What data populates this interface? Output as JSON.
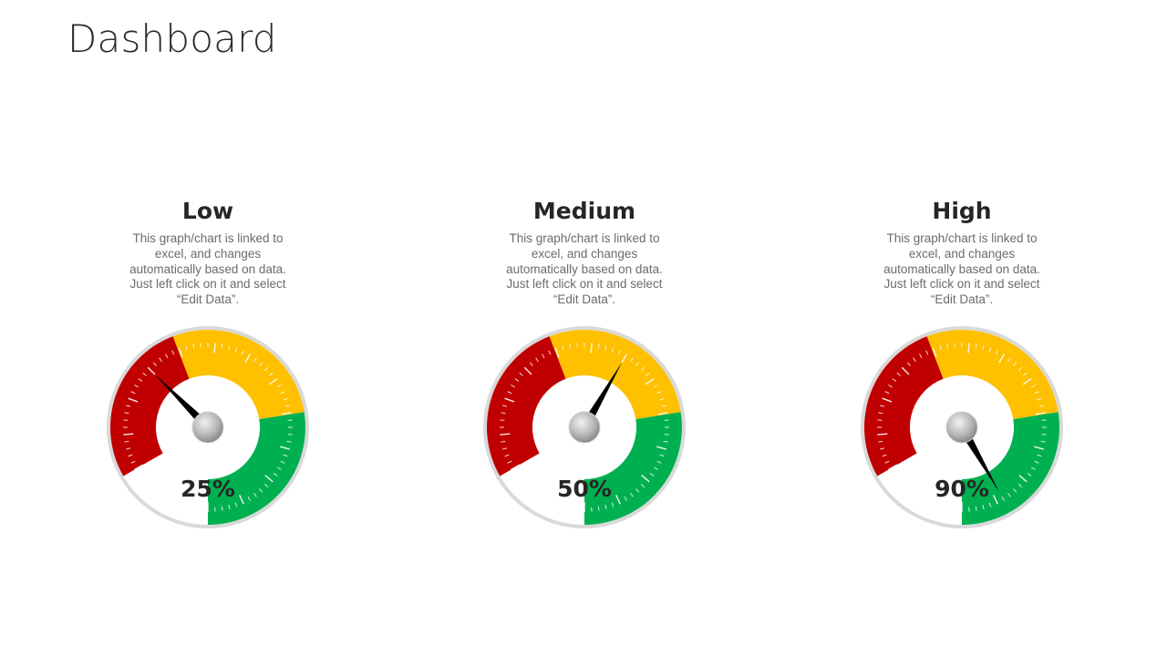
{
  "title": "Dashboard",
  "colors": {
    "low": "#c00000",
    "medium": "#ffc000",
    "high": "#00b050",
    "needle": "#000000",
    "rim": "#d9d9d9"
  },
  "chart_data": [
    {
      "type": "gauge",
      "title": "Low",
      "description": "This graph/chart is linked to excel, and changes automatically based on data. Just left click on it and select “Edit Data”.",
      "value": 25,
      "value_label": "25%",
      "range": [
        0,
        100
      ],
      "bands": [
        {
          "color": "#c00000",
          "from": 0,
          "to": 33
        },
        {
          "color": "#ffc000",
          "from": 33,
          "to": 67
        },
        {
          "color": "#00b050",
          "from": 67,
          "to": 100
        }
      ]
    },
    {
      "type": "gauge",
      "title": "Medium",
      "description": "This graph/chart is linked to excel, and changes automatically based on data. Just left click on it and select “Edit Data”.",
      "value": 50,
      "value_label": "50%",
      "range": [
        0,
        100
      ],
      "bands": [
        {
          "color": "#c00000",
          "from": 0,
          "to": 33
        },
        {
          "color": "#ffc000",
          "from": 33,
          "to": 67
        },
        {
          "color": "#00b050",
          "from": 67,
          "to": 100
        }
      ]
    },
    {
      "type": "gauge",
      "title": "High",
      "description": "This graph/chart is linked to excel, and changes automatically based on data. Just left click on it and select “Edit Data”.",
      "value": 90,
      "value_label": "90%",
      "range": [
        0,
        100
      ],
      "bands": [
        {
          "color": "#c00000",
          "from": 0,
          "to": 33
        },
        {
          "color": "#ffc000",
          "from": 33,
          "to": 67
        },
        {
          "color": "#00b050",
          "from": 67,
          "to": 100
        }
      ]
    }
  ]
}
